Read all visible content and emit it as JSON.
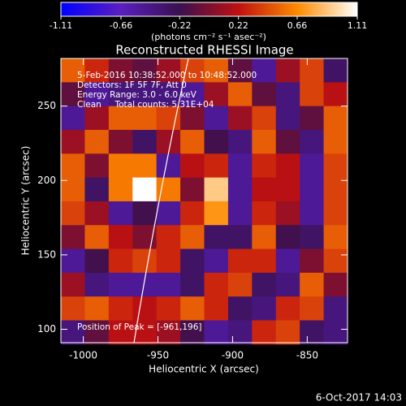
{
  "chart_data": {
    "type": "heatmap",
    "title": "Reconstructed RHESSI Image",
    "colorbar_label": "(photons cm⁻² s⁻¹ asec⁻²)",
    "x_label": "Heliocentric X (arcsec)",
    "y_label": "Heliocentric Y (arcsec)",
    "annotations": [
      "5-Feb-2016 10:38:52.000 to 10:48:52.000",
      "Detectors: 1F 5F 7F, Att 0",
      "Energy Range: 3.0 - 6.0 keV",
      "Clean     Total counts: 5.31E+04"
    ],
    "peak_label": "Position of Peak = [-961,196]",
    "footer": "6-Oct-2017 14:03",
    "xlim": [
      -1015,
      -823
    ],
    "ylim": [
      91,
      282
    ],
    "xticks": [
      -1000,
      -950,
      -900,
      -850
    ],
    "yticks": [
      100,
      150,
      200,
      250
    ],
    "zlim": [
      -1.11,
      1.11
    ],
    "zticks": [
      -1.11,
      -0.66,
      -0.22,
      0.22,
      0.66,
      1.11
    ],
    "colors": [
      "#0000ff",
      "#5a1fc0",
      "#3a1050",
      "#c01010",
      "#ff8c00",
      "#ffffff"
    ],
    "x": [
      -1007,
      -991,
      -975,
      -959,
      -943,
      -927,
      -911,
      -895,
      -879,
      -863,
      -847,
      -831
    ],
    "y": [
      274,
      258,
      242,
      226,
      210,
      194,
      178,
      162,
      146,
      130,
      114,
      98
    ],
    "values": [
      [
        0.5,
        0.3,
        0.0,
        -0.1,
        0.1,
        0.4,
        0.5,
        -0.1,
        -0.5,
        0.1,
        0.4,
        -0.3
      ],
      [
        -0.1,
        -0.5,
        -0.4,
        -0.4,
        -0.4,
        -0.5,
        0.1,
        0.5,
        -0.1,
        -0.4,
        0.4,
        0.2
      ],
      [
        -0.5,
        0.1,
        0.5,
        0.5,
        0.4,
        0.0,
        -0.5,
        0.1,
        0.4,
        -0.4,
        -0.1,
        0.5
      ],
      [
        0.1,
        0.5,
        0.0,
        -0.3,
        0.1,
        0.5,
        -0.2,
        -0.4,
        0.5,
        -0.1,
        -0.4,
        0.5
      ],
      [
        0.5,
        0.0,
        0.6,
        0.6,
        -0.5,
        0.2,
        0.3,
        -0.5,
        0.3,
        0.2,
        -0.5,
        0.4
      ],
      [
        0.5,
        -0.3,
        0.6,
        1.11,
        0.6,
        0.0,
        0.9,
        -0.5,
        0.2,
        0.2,
        -0.5,
        0.4
      ],
      [
        0.4,
        0.1,
        -0.5,
        -0.2,
        -0.5,
        0.3,
        0.7,
        -0.5,
        0.3,
        0.1,
        -0.5,
        0.4
      ],
      [
        0.0,
        0.5,
        0.2,
        0.0,
        0.3,
        0.5,
        -0.3,
        -0.3,
        0.5,
        -0.2,
        -0.3,
        0.5
      ],
      [
        -0.5,
        -0.2,
        0.3,
        0.4,
        0.3,
        -0.3,
        -0.5,
        0.3,
        0.3,
        -0.5,
        0.0,
        0.4
      ],
      [
        0.1,
        -0.4,
        -0.5,
        -0.5,
        -0.5,
        -0.3,
        0.3,
        0.4,
        -0.3,
        -0.4,
        0.5,
        0.0
      ],
      [
        0.4,
        0.5,
        0.3,
        0.2,
        0.3,
        0.5,
        0.3,
        -0.3,
        -0.4,
        0.3,
        0.4,
        -0.4
      ],
      [
        -0.4,
        -0.1,
        0.2,
        0.2,
        0.1,
        -0.2,
        -0.5,
        -0.4,
        0.3,
        0.4,
        -0.3,
        -0.4
      ]
    ]
  }
}
